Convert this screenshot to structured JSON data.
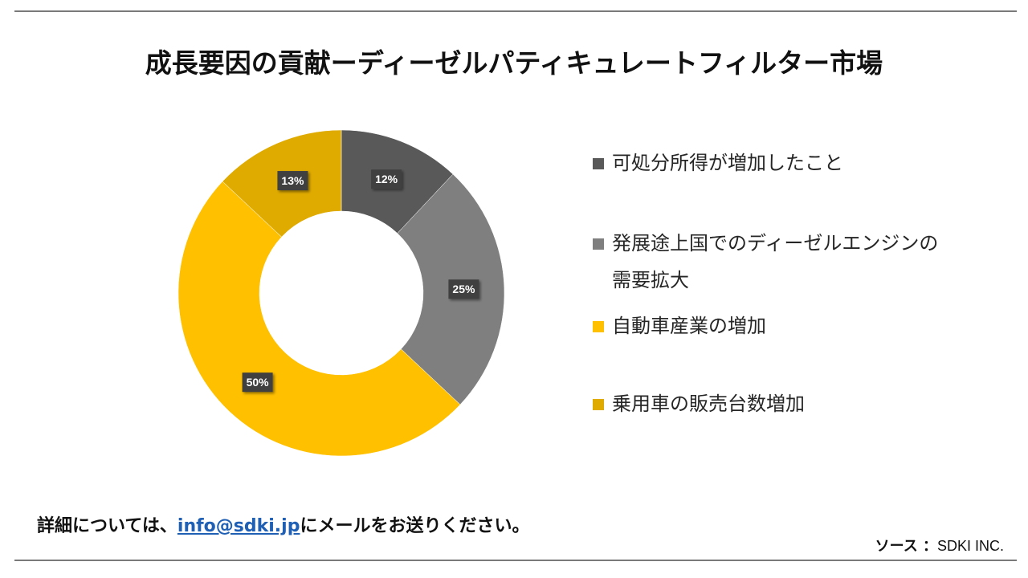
{
  "title": "成長要因の貢献ーディーゼルパティキュレートフィルター市場",
  "chart_data": {
    "type": "pie",
    "donut": true,
    "categories": [
      "可処分所得が増加したこと",
      "発展途上国でのディーゼルエンジンの需要拡大",
      "自動車産業の増加",
      "乗用車の販売台数増加"
    ],
    "values": [
      12,
      25,
      50,
      13
    ],
    "data_labels": [
      "12%",
      "25%",
      "50%",
      "13%"
    ],
    "colors": [
      "#595959",
      "#7f7f7f",
      "#ffc000",
      "#e0ab00"
    ],
    "legend_position": "right"
  },
  "footer": {
    "prefix": "詳細については、",
    "email": "info@sdki.jp",
    "suffix": "にメールをお送りください。"
  },
  "source": {
    "label": "ソース ：",
    "value": "SDKI INC."
  }
}
